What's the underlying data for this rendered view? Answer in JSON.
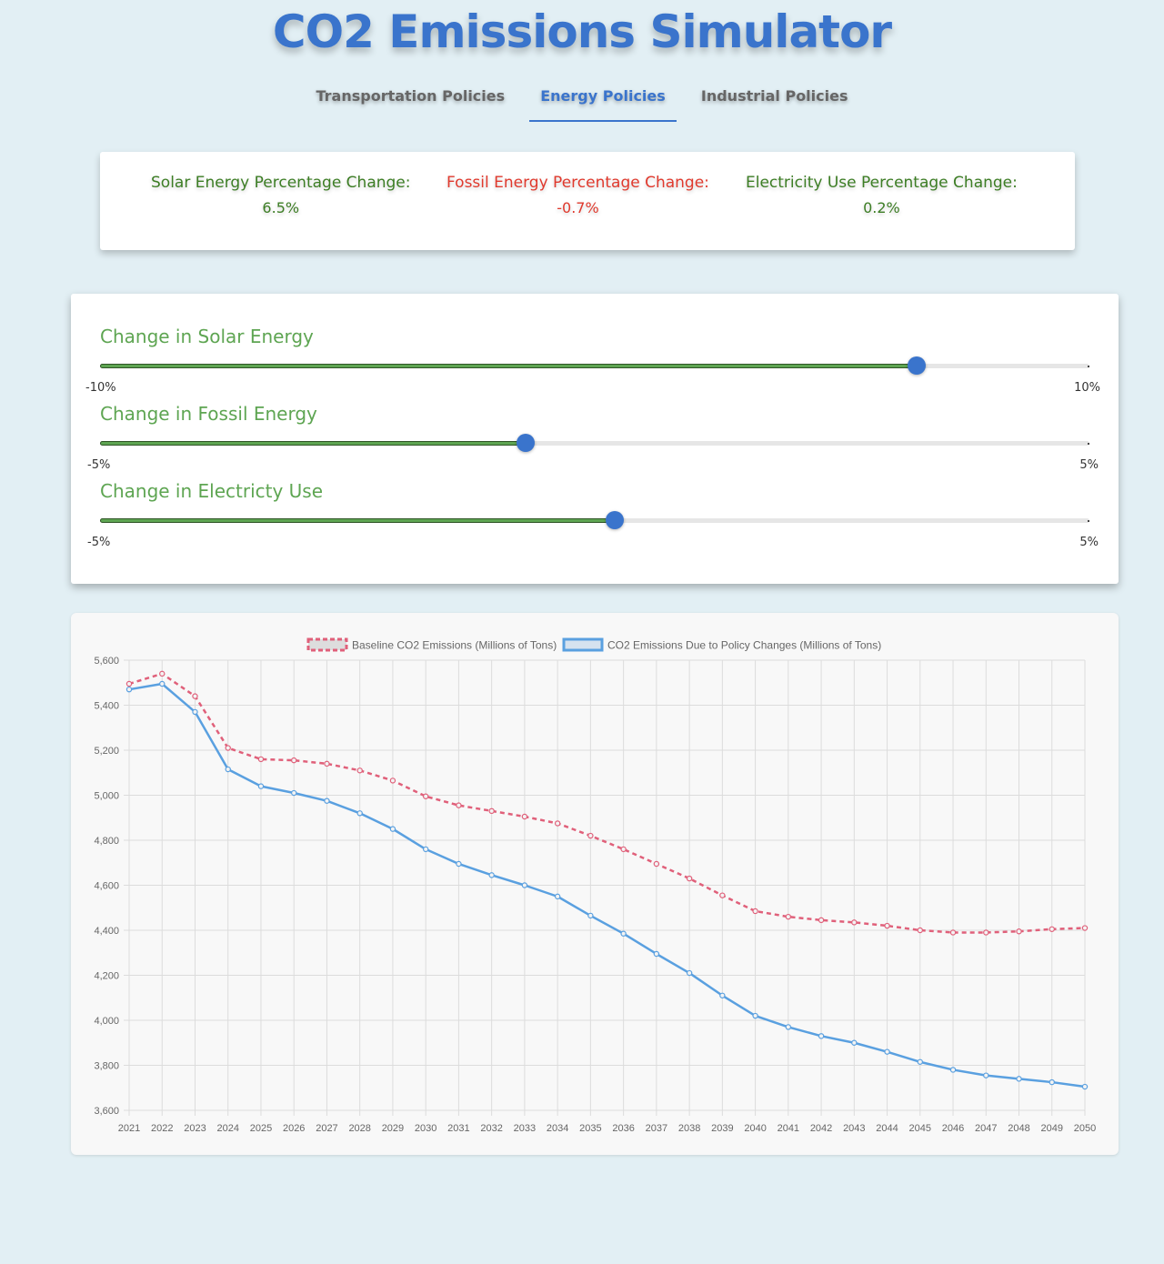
{
  "app": {
    "title": "CO2 Emissions Simulator"
  },
  "tabs": [
    {
      "label": "Transportation Policies",
      "active": false
    },
    {
      "label": "Energy Policies",
      "active": true
    },
    {
      "label": "Industrial Policies",
      "active": false
    }
  ],
  "summary": {
    "solar": {
      "label": "Solar Energy Percentage Change:",
      "value": "6.5%",
      "color": "#3c7d24"
    },
    "fossil": {
      "label": "Fossil Energy Percentage Change:",
      "value": "-0.7%",
      "color": "#e0392d"
    },
    "electricity": {
      "label": "Electricity Use Percentage Change:",
      "value": "0.2%",
      "color": "#3c7d24"
    }
  },
  "sliders": [
    {
      "label": "Change in Solar Energy",
      "min_label": "-10%",
      "max_label": "10%",
      "min": -10,
      "max": 10,
      "value": 6.5
    },
    {
      "label": "Change in Fossil Energy",
      "min_label": "-5%",
      "max_label": "5%",
      "min": -5,
      "max": 5,
      "value": -0.7
    },
    {
      "label": "Change in Electricty Use",
      "min_label": "-5%",
      "max_label": "5%",
      "min": -5,
      "max": 5,
      "value": 0.2
    }
  ],
  "colors": {
    "accent": "#3a74cc",
    "slider_fill": "#5ea552",
    "baseline": "#e0607a",
    "policy": "#5aa0e0"
  },
  "chart_data": {
    "type": "line",
    "x": [
      2021,
      2022,
      2023,
      2024,
      2025,
      2026,
      2027,
      2028,
      2029,
      2030,
      2031,
      2032,
      2033,
      2034,
      2035,
      2036,
      2037,
      2038,
      2039,
      2040,
      2041,
      2042,
      2043,
      2044,
      2045,
      2046,
      2047,
      2048,
      2049,
      2050
    ],
    "series": [
      {
        "name": "Baseline CO2 Emissions (Millions of Tons)",
        "style": "dashed",
        "color": "#e0607a",
        "values": [
          5495,
          5540,
          5440,
          5210,
          5160,
          5155,
          5140,
          5110,
          5065,
          4995,
          4955,
          4930,
          4905,
          4875,
          4820,
          4760,
          4695,
          4630,
          4555,
          4485,
          4460,
          4445,
          4435,
          4420,
          4400,
          4390,
          4390,
          4395,
          4405,
          4410
        ]
      },
      {
        "name": "CO2 Emissions Due to Policy Changes (Millions of Tons)",
        "style": "solid",
        "color": "#5aa0e0",
        "values": [
          5470,
          5495,
          5370,
          5115,
          5040,
          5010,
          4975,
          4920,
          4850,
          4760,
          4695,
          4645,
          4600,
          4550,
          4465,
          4385,
          4295,
          4210,
          4110,
          4020,
          3970,
          3930,
          3900,
          3860,
          3815,
          3780,
          3755,
          3740,
          3725,
          3705
        ]
      }
    ],
    "ylim": [
      3600,
      5600
    ],
    "yticks": [
      "5,600",
      "5,400",
      "5,200",
      "5,000",
      "4,800",
      "4,600",
      "4,400",
      "4,200",
      "4,000",
      "3,800",
      "3,600"
    ],
    "grid": true,
    "legend_position": "top"
  }
}
